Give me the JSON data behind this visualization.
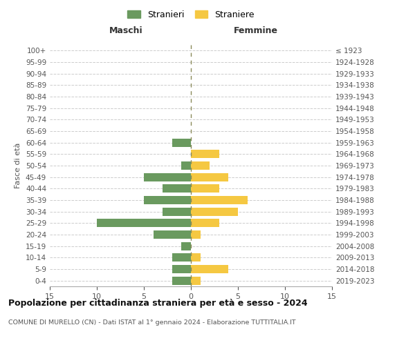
{
  "age_groups": [
    "0-4",
    "5-9",
    "10-14",
    "15-19",
    "20-24",
    "25-29",
    "30-34",
    "35-39",
    "40-44",
    "45-49",
    "50-54",
    "55-59",
    "60-64",
    "65-69",
    "70-74",
    "75-79",
    "80-84",
    "85-89",
    "90-94",
    "95-99",
    "100+"
  ],
  "birth_years": [
    "2019-2023",
    "2014-2018",
    "2009-2013",
    "2004-2008",
    "1999-2003",
    "1994-1998",
    "1989-1993",
    "1984-1988",
    "1979-1983",
    "1974-1978",
    "1969-1973",
    "1964-1968",
    "1959-1963",
    "1954-1958",
    "1949-1953",
    "1944-1948",
    "1939-1943",
    "1934-1938",
    "1929-1933",
    "1924-1928",
    "≤ 1923"
  ],
  "maschi": [
    2,
    2,
    2,
    1,
    4,
    10,
    3,
    5,
    3,
    5,
    1,
    0,
    2,
    0,
    0,
    0,
    0,
    0,
    0,
    0,
    0
  ],
  "femmine": [
    1,
    4,
    1,
    0,
    1,
    3,
    5,
    6,
    3,
    4,
    2,
    3,
    0,
    0,
    0,
    0,
    0,
    0,
    0,
    0,
    0
  ],
  "male_color": "#6a9a5f",
  "female_color": "#f5c842",
  "center_line_color": "#8a8a5a",
  "grid_color": "#cccccc",
  "title": "Popolazione per cittadinanza straniera per età e sesso - 2024",
  "subtitle": "COMUNE DI MURELLO (CN) - Dati ISTAT al 1° gennaio 2024 - Elaborazione TUTTITALIA.IT",
  "xlabel_left": "Maschi",
  "xlabel_right": "Femmine",
  "ylabel_left": "Fasce di età",
  "legend_male": "Stranieri",
  "legend_female": "Straniere",
  "xlim": 15,
  "background_color": "#ffffff"
}
